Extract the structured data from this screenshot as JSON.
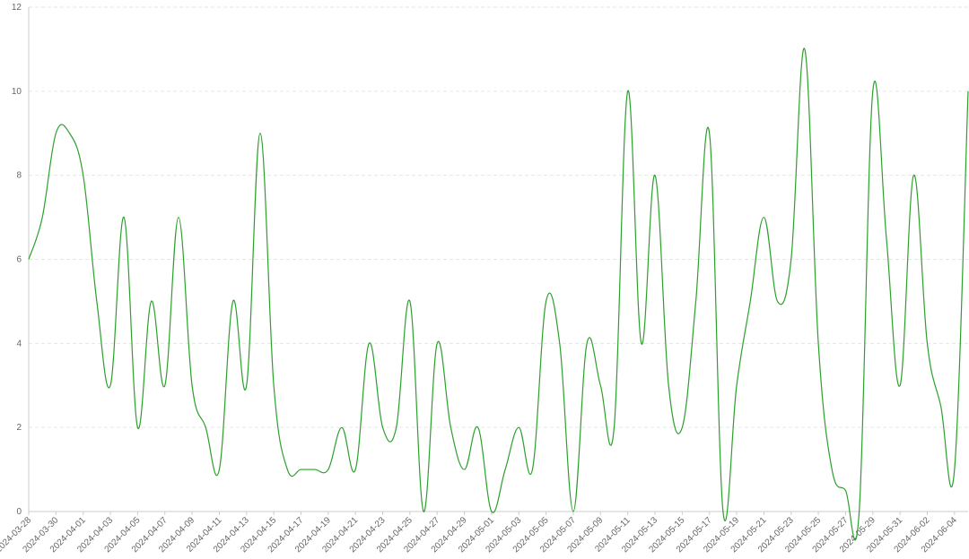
{
  "chart_data": {
    "type": "line",
    "categories": [
      "2024-03-28",
      null,
      "2024-03-30",
      null,
      "2024-04-01",
      null,
      "2024-04-03",
      null,
      "2024-04-05",
      null,
      "2024-04-07",
      null,
      "2024-04-09",
      null,
      "2024-04-11",
      null,
      "2024-04-13",
      null,
      "2024-04-15",
      null,
      "2024-04-17",
      null,
      "2024-04-19",
      null,
      "2024-04-21",
      null,
      "2024-04-23",
      null,
      "2024-04-25",
      null,
      "2024-04-27",
      null,
      "2024-04-29",
      null,
      "2024-05-01",
      null,
      "2024-05-03",
      null,
      "2024-05-05",
      null,
      "2024-05-07",
      null,
      "2024-05-09",
      null,
      "2024-05-11",
      null,
      "2024-05-13",
      null,
      "2024-05-15",
      null,
      "2024-05-17",
      null,
      "2024-05-19",
      null,
      "2024-05-21",
      null,
      "2024-05-23",
      null,
      "2024-05-25",
      null,
      "2024-05-27",
      null,
      "2024-05-29",
      null,
      "2024-05-31",
      null,
      "2024-06-02",
      null,
      "2024-06-04",
      null
    ],
    "values": [
      6,
      7,
      9,
      9,
      8,
      5,
      3,
      7,
      2,
      5,
      3,
      7,
      3,
      2,
      1,
      5,
      3,
      9,
      3,
      1,
      1,
      1,
      1,
      2,
      1,
      4,
      2,
      2,
      5,
      0,
      4,
      2,
      1,
      2,
      0,
      1,
      2,
      1,
      5,
      4,
      0,
      4,
      3,
      2,
      10,
      4,
      8,
      3,
      2,
      5,
      9,
      0,
      3,
      5,
      7,
      5,
      6,
      11,
      4,
      1,
      0.5,
      0,
      10,
      6.5,
      3,
      8,
      4,
      2.5,
      1,
      10
    ],
    "color": "#2ca02c",
    "ylim": [
      0,
      12
    ],
    "yticks": [
      0,
      2,
      4,
      6,
      8,
      10,
      12
    ],
    "grid": true
  }
}
